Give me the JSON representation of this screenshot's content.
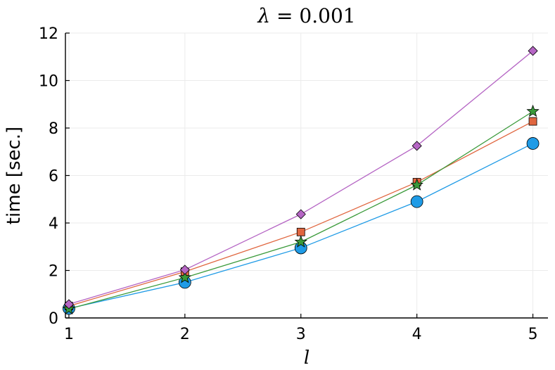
{
  "chart_data": {
    "type": "line",
    "title": "λ = 0.001",
    "xlabel": "l",
    "ylabel": "time [sec.]",
    "x": [
      1,
      2,
      3,
      4,
      5
    ],
    "xlim": [
      0.97,
      5.13
    ],
    "ylim": [
      0,
      12
    ],
    "xticks": [
      "1",
      "2",
      "3",
      "4",
      "5"
    ],
    "yticks": [
      "0",
      "2",
      "4",
      "6",
      "8",
      "10",
      "12"
    ],
    "grid": true,
    "legend": "none",
    "series": [
      {
        "color": "#1f9be6",
        "marker": "circle",
        "values": [
          0.4,
          1.5,
          2.95,
          4.9,
          7.35
        ]
      },
      {
        "color": "#e0663f",
        "marker": "square",
        "values": [
          0.5,
          1.95,
          3.62,
          5.72,
          8.28
        ]
      },
      {
        "color": "#3a9a3a",
        "marker": "star",
        "values": [
          0.38,
          1.7,
          3.2,
          5.6,
          8.7
        ]
      },
      {
        "color": "#b565c4",
        "marker": "diamond",
        "values": [
          0.58,
          2.03,
          4.37,
          7.25,
          11.25
        ]
      }
    ]
  }
}
